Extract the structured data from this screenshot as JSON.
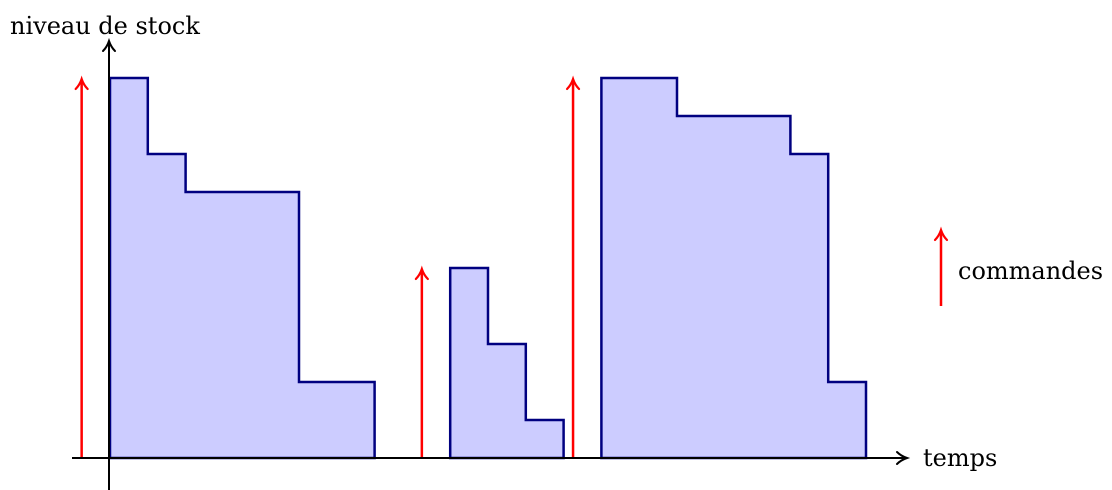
{
  "labels": {
    "y_axis": "niveau de stock",
    "x_axis": "temps",
    "legend": "commandes"
  },
  "colors": {
    "stock_fill": "#ccccff",
    "stock_stroke": "#000080",
    "order_arrow": "#ff0000",
    "axis": "#000000"
  },
  "stock_cycles": [
    {
      "name": "cycle-1",
      "steps": [
        {
          "t_start": 0.0,
          "t_end": 1.0,
          "level": 10
        },
        {
          "t_start": 1.0,
          "t_end": 2.0,
          "level": 8
        },
        {
          "t_start": 2.0,
          "t_end": 5.0,
          "level": 7
        },
        {
          "t_start": 5.0,
          "t_end": 7.0,
          "level": 2
        }
      ]
    },
    {
      "name": "cycle-2",
      "steps": [
        {
          "t_start": 9.0,
          "t_end": 10.0,
          "level": 5
        },
        {
          "t_start": 10.0,
          "t_end": 11.0,
          "level": 3
        },
        {
          "t_start": 11.0,
          "t_end": 12.0,
          "level": 1
        }
      ]
    },
    {
      "name": "cycle-3",
      "steps": [
        {
          "t_start": 13.0,
          "t_end": 15.0,
          "level": 10
        },
        {
          "t_start": 15.0,
          "t_end": 18.0,
          "level": 9
        },
        {
          "t_start": 18.0,
          "t_end": 19.0,
          "level": 8
        },
        {
          "t_start": 19.0,
          "t_end": 20.0,
          "level": 2
        }
      ]
    }
  ],
  "orders": [
    {
      "t": -0.75,
      "level": 10
    },
    {
      "t": 8.25,
      "level": 5
    },
    {
      "t": 12.25,
      "level": 10
    }
  ]
}
